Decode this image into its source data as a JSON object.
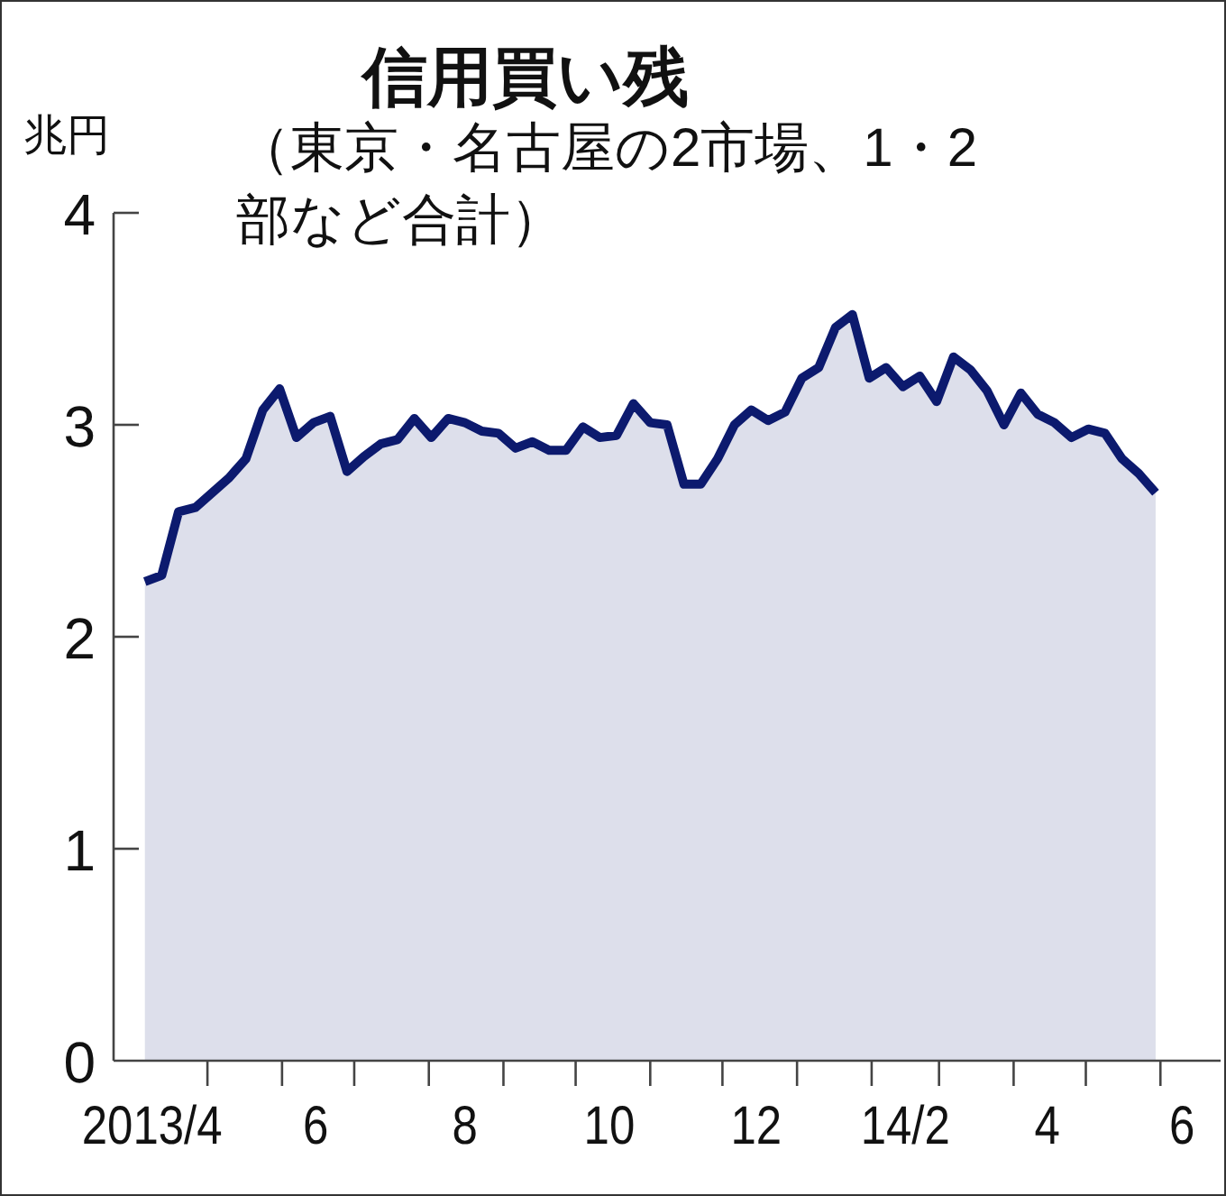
{
  "chart_data": {
    "type": "area",
    "title": "信用買い残",
    "subtitle": "（東京・名古屋の2市場、1・2部など合計）",
    "ylabel": "兆円",
    "x": [
      "2013-04-05",
      "2013-04-12",
      "2013-04-19",
      "2013-04-26",
      "2013-05-03",
      "2013-05-10",
      "2013-05-17",
      "2013-05-24",
      "2013-05-31",
      "2013-06-07",
      "2013-06-14",
      "2013-06-21",
      "2013-06-28",
      "2013-07-05",
      "2013-07-12",
      "2013-07-19",
      "2013-07-26",
      "2013-08-02",
      "2013-08-09",
      "2013-08-16",
      "2013-08-23",
      "2013-08-30",
      "2013-09-06",
      "2013-09-13",
      "2013-09-20",
      "2013-09-27",
      "2013-10-04",
      "2013-10-11",
      "2013-10-18",
      "2013-10-25",
      "2013-11-01",
      "2013-11-08",
      "2013-11-15",
      "2013-11-22",
      "2013-11-29",
      "2013-12-06",
      "2013-12-13",
      "2013-12-20",
      "2013-12-27",
      "2014-01-03",
      "2014-01-10",
      "2014-01-17",
      "2014-01-24",
      "2014-01-31",
      "2014-02-07",
      "2014-02-14",
      "2014-02-21",
      "2014-02-28",
      "2014-03-07",
      "2014-03-14",
      "2014-03-21",
      "2014-03-28",
      "2014-04-04",
      "2014-04-11",
      "2014-04-18",
      "2014-04-25",
      "2014-05-02",
      "2014-05-09",
      "2014-05-16",
      "2014-05-23",
      "2014-05-30"
    ],
    "series": [
      {
        "color": "#0c1a6e",
        "values": [
          2.26,
          2.29,
          2.59,
          2.61,
          2.68,
          2.75,
          2.84,
          3.07,
          3.17,
          2.94,
          3.01,
          3.04,
          2.78,
          2.85,
          2.91,
          2.93,
          3.03,
          2.94,
          3.03,
          3.01,
          2.97,
          2.96,
          2.89,
          2.92,
          2.88,
          2.88,
          2.99,
          2.94,
          2.95,
          3.1,
          3.01,
          3.0,
          2.72,
          2.72,
          2.84,
          3.0,
          3.07,
          3.02,
          3.06,
          3.22,
          3.27,
          3.46,
          3.52,
          3.22,
          3.27,
          3.18,
          3.23,
          3.11,
          3.32,
          3.26,
          3.16,
          3.0,
          3.15,
          3.05,
          3.01,
          2.94,
          2.98,
          2.96,
          2.84,
          2.77,
          2.68
        ]
      }
    ],
    "xlim": [
      "2013-03-23",
      "2014-06-26"
    ],
    "xticks": [
      {
        "value": "2013-04-08",
        "label": "2013/4"
      },
      {
        "value": "2013-05-01",
        "label": null
      },
      {
        "value": "2013-06-01",
        "label": null
      },
      {
        "value": "2013-06-15",
        "label": "6"
      },
      {
        "value": "2013-07-01",
        "label": null
      },
      {
        "value": "2013-08-01",
        "label": null
      },
      {
        "value": "2013-08-16",
        "label": "8"
      },
      {
        "value": "2013-09-01",
        "label": null
      },
      {
        "value": "2013-10-01",
        "label": null
      },
      {
        "value": "2013-10-15",
        "label": "10"
      },
      {
        "value": "2013-11-01",
        "label": null
      },
      {
        "value": "2013-12-01",
        "label": null
      },
      {
        "value": "2013-12-15",
        "label": "12"
      },
      {
        "value": "2014-01-01",
        "label": null
      },
      {
        "value": "2014-02-01",
        "label": null
      },
      {
        "value": "2014-02-15",
        "label": "14/2"
      },
      {
        "value": "2014-03-01",
        "label": null
      },
      {
        "value": "2014-04-01",
        "label": null
      },
      {
        "value": "2014-04-15",
        "label": "4"
      },
      {
        "value": "2014-05-01",
        "label": null
      },
      {
        "value": "2014-06-01",
        "label": null
      },
      {
        "value": "2014-06-10",
        "label": "6"
      }
    ],
    "ylim": [
      0,
      4
    ],
    "yticks": [
      0,
      1,
      2,
      3,
      4
    ]
  }
}
